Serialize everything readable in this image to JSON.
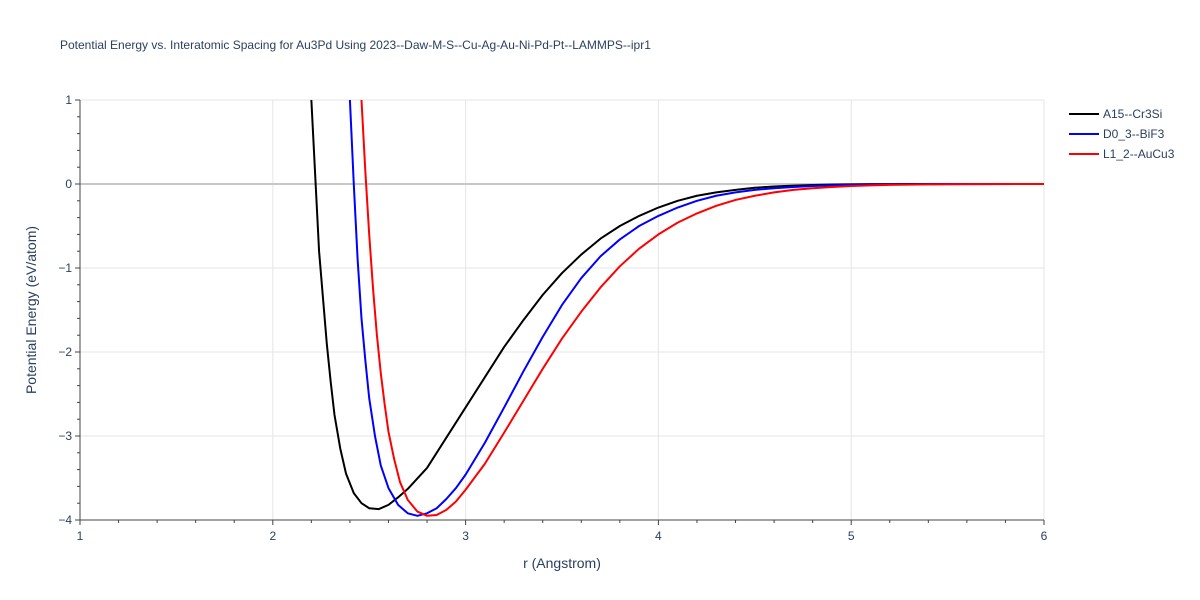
{
  "chart_data": {
    "type": "line",
    "title": "Potential Energy vs. Interatomic Spacing for Au3Pd Using 2023--Daw-M-S--Cu-Ag-Au-Ni-Pd-Pt--LAMMPS--ipr1",
    "xlabel": "r (Angstrom)",
    "ylabel": "Potential Energy (eV/atom)",
    "xlim": [
      1,
      6
    ],
    "ylim": [
      -4,
      1
    ],
    "xticks": [
      1,
      2,
      3,
      4,
      5,
      6
    ],
    "xtick_labels": [
      "1",
      "2",
      "3",
      "4",
      "5",
      "6"
    ],
    "yticks": [
      -4,
      -3,
      -2,
      -1,
      0,
      1
    ],
    "ytick_labels": [
      "−4",
      "−3",
      "−2",
      "−1",
      "0",
      "1"
    ],
    "grid": true,
    "legend_position": "top-right",
    "series": [
      {
        "name": "A15--Cr3Si",
        "color": "#000000",
        "x": [
          2.2,
          2.24,
          2.28,
          2.3,
          2.32,
          2.35,
          2.38,
          2.42,
          2.46,
          2.5,
          2.55,
          2.6,
          2.65,
          2.7,
          2.8,
          2.9,
          3.0,
          3.1,
          3.2,
          3.3,
          3.4,
          3.5,
          3.6,
          3.7,
          3.8,
          3.9,
          4.0,
          4.1,
          4.2,
          4.3,
          4.4,
          4.5,
          4.6,
          4.7,
          4.8,
          4.9,
          5.0,
          5.1,
          5.2,
          5.3,
          5.5,
          6.0
        ],
        "y": [
          1.0,
          -0.8,
          -1.9,
          -2.35,
          -2.75,
          -3.15,
          -3.45,
          -3.68,
          -3.8,
          -3.86,
          -3.87,
          -3.82,
          -3.73,
          -3.63,
          -3.38,
          -3.02,
          -2.66,
          -2.3,
          -1.94,
          -1.62,
          -1.32,
          -1.06,
          -0.84,
          -0.65,
          -0.5,
          -0.38,
          -0.28,
          -0.2,
          -0.14,
          -0.1,
          -0.07,
          -0.045,
          -0.03,
          -0.02,
          -0.012,
          -0.007,
          -0.004,
          -0.002,
          -0.001,
          0.0,
          0.0,
          0.0
        ]
      },
      {
        "name": "D0_3--BiF3",
        "color": "#0000ff",
        "x": [
          2.4,
          2.42,
          2.44,
          2.46,
          2.48,
          2.5,
          2.53,
          2.56,
          2.6,
          2.65,
          2.7,
          2.75,
          2.8,
          2.85,
          2.9,
          2.95,
          3.0,
          3.1,
          3.2,
          3.3,
          3.4,
          3.5,
          3.6,
          3.7,
          3.8,
          3.9,
          4.0,
          4.1,
          4.2,
          4.3,
          4.4,
          4.5,
          4.6,
          4.7,
          4.8,
          4.9,
          5.0,
          5.1,
          5.2,
          5.4,
          5.6,
          6.0
        ],
        "y": [
          1.0,
          0.0,
          -0.9,
          -1.6,
          -2.1,
          -2.55,
          -3.0,
          -3.35,
          -3.62,
          -3.82,
          -3.92,
          -3.95,
          -3.92,
          -3.86,
          -3.75,
          -3.62,
          -3.46,
          -3.08,
          -2.66,
          -2.23,
          -1.82,
          -1.44,
          -1.12,
          -0.86,
          -0.66,
          -0.5,
          -0.38,
          -0.28,
          -0.2,
          -0.14,
          -0.1,
          -0.07,
          -0.05,
          -0.035,
          -0.024,
          -0.016,
          -0.01,
          -0.006,
          -0.004,
          -0.002,
          -0.001,
          0.0
        ]
      },
      {
        "name": "L1_2--AuCu3",
        "color": "#ff0000",
        "x": [
          2.46,
          2.48,
          2.5,
          2.52,
          2.54,
          2.56,
          2.58,
          2.6,
          2.63,
          2.66,
          2.7,
          2.75,
          2.8,
          2.85,
          2.9,
          2.95,
          3.0,
          3.1,
          3.2,
          3.3,
          3.4,
          3.5,
          3.6,
          3.7,
          3.8,
          3.9,
          4.0,
          4.1,
          4.2,
          4.3,
          4.4,
          4.5,
          4.6,
          4.7,
          4.8,
          4.9,
          5.0,
          5.1,
          5.2,
          5.4,
          5.6,
          6.0
        ],
        "y": [
          1.0,
          0.15,
          -0.6,
          -1.25,
          -1.8,
          -2.25,
          -2.62,
          -2.95,
          -3.28,
          -3.55,
          -3.76,
          -3.9,
          -3.95,
          -3.94,
          -3.88,
          -3.78,
          -3.64,
          -3.33,
          -2.96,
          -2.58,
          -2.2,
          -1.84,
          -1.52,
          -1.23,
          -0.98,
          -0.77,
          -0.6,
          -0.46,
          -0.35,
          -0.26,
          -0.19,
          -0.14,
          -0.1,
          -0.07,
          -0.05,
          -0.035,
          -0.024,
          -0.016,
          -0.01,
          -0.005,
          -0.002,
          0.0
        ]
      }
    ]
  }
}
